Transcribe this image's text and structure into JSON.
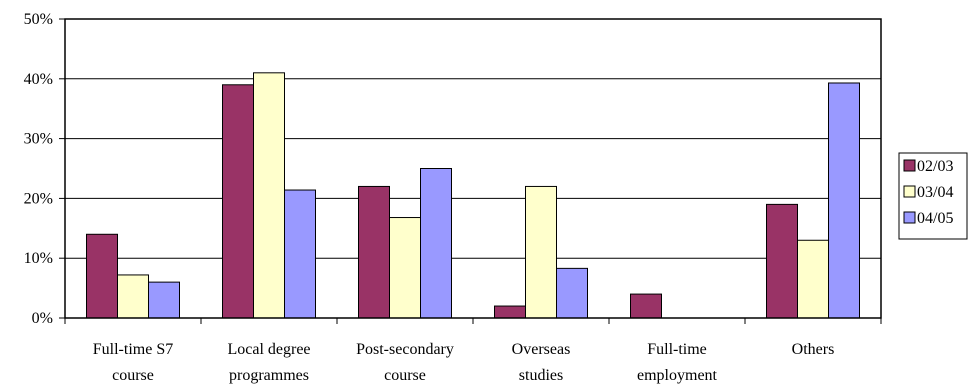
{
  "chart_data": {
    "type": "bar",
    "categories": [
      [
        "Full-time S7",
        "course"
      ],
      [
        "Local degree",
        "programmes"
      ],
      [
        "Post-secondary",
        "course"
      ],
      [
        "Overseas",
        "studies"
      ],
      [
        "Full-time",
        "employment"
      ],
      [
        "Others"
      ]
    ],
    "series": [
      {
        "name": "02/03",
        "color": "#993366",
        "values": [
          14,
          39,
          22,
          2,
          4,
          19
        ]
      },
      {
        "name": "03/04",
        "color": "#FFFFCC",
        "values": [
          7.2,
          41,
          16.8,
          22,
          0,
          13
        ]
      },
      {
        "name": "04/05",
        "color": "#9999FF",
        "values": [
          6,
          21.4,
          25,
          8.3,
          0,
          39.3
        ]
      }
    ],
    "ylim": [
      0,
      50
    ],
    "yticks": [
      "0%",
      "10%",
      "20%",
      "30%",
      "40%",
      "50%"
    ],
    "grid": true,
    "legend_position": "right"
  }
}
